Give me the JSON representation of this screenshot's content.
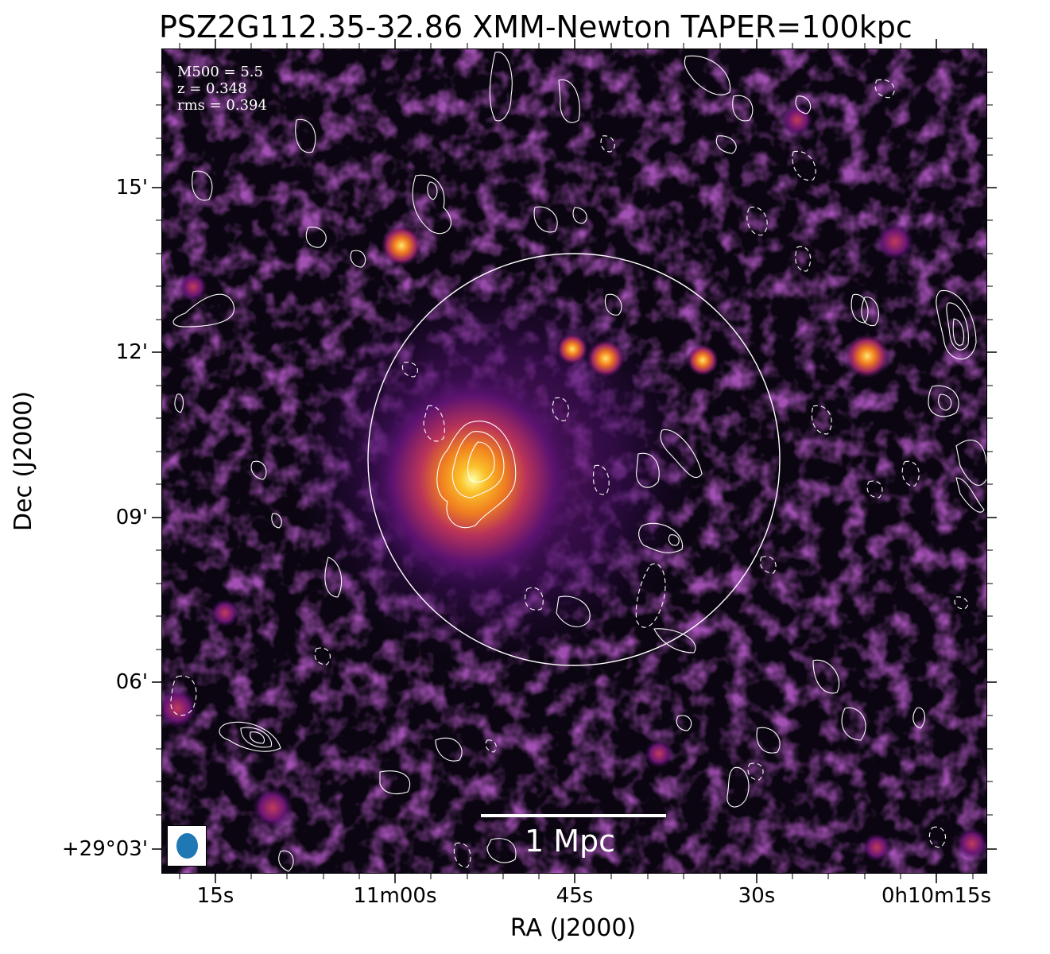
{
  "title": "PSZ2G112.35-32.86 XMM-Newton TAPER=100kpc",
  "info": {
    "m500": "M500 = 5.5",
    "z": "z = 0.348",
    "rms": "rms = 0.394"
  },
  "axes": {
    "xlabel": "RA (J2000)",
    "ylabel": "Dec (J2000)",
    "xticks": [
      "15s",
      "11m00s",
      "45s",
      "30s",
      "0h10m15s"
    ],
    "yticks": [
      "15'",
      "12'",
      "09'",
      "06'",
      "+29°03'"
    ]
  },
  "scalebar": {
    "label": "1 Mpc"
  },
  "colors": {
    "background": "#0a0510",
    "colormap": "inferno",
    "contours": "#ffffff",
    "beam": "#1f77b4"
  },
  "image": {
    "description_type": "X-ray surface brightness with radio contours",
    "circle": "R500 circle"
  }
}
